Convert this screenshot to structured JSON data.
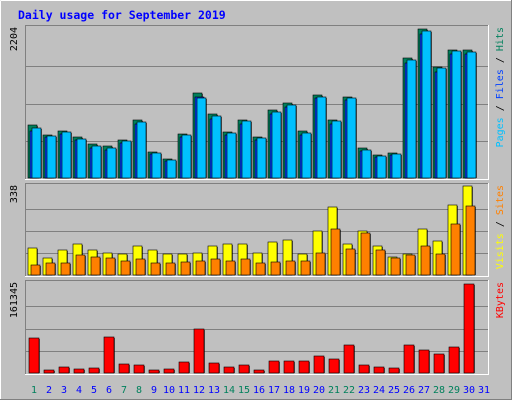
{
  "title": "Daily usage for September 2019",
  "colors": {
    "background": "#c0c0c0",
    "border_dark": "#808080",
    "title": "#0000ff",
    "hits": "#00805c",
    "files": "#0040ff",
    "pages": "#00c0ff",
    "visits": "#ffff00",
    "sites": "#ff8000",
    "kbytes": "#ff0000",
    "weekend_day": "#00805c",
    "weekday": "#0000ff",
    "gridline": "#808080"
  },
  "chart_data": [
    {
      "type": "bar",
      "panel": "top",
      "categories": [
        "1",
        "2",
        "3",
        "4",
        "5",
        "6",
        "7",
        "8",
        "9",
        "10",
        "11",
        "12",
        "13",
        "14",
        "15",
        "16",
        "17",
        "18",
        "19",
        "20",
        "21",
        "22",
        "23",
        "24",
        "25",
        "26",
        "27",
        "28",
        "29",
        "30",
        "31"
      ],
      "max_label": "2204",
      "ylim": [
        0,
        2204
      ],
      "legend": [
        "Pages",
        "Files",
        "Hits"
      ],
      "series": [
        {
          "name": "Hits",
          "color": "#00805c",
          "values": [
            780,
            640,
            700,
            600,
            500,
            470,
            560,
            860,
            380,
            280,
            650,
            1250,
            950,
            680,
            860,
            610,
            1000,
            1110,
            690,
            1230,
            860,
            1200,
            440,
            340,
            370,
            1770,
            2200,
            1640,
            1900,
            1900,
            0
          ]
        },
        {
          "name": "Files",
          "color": "#0040ff",
          "values": [
            700,
            600,
            650,
            560,
            450,
            420,
            520,
            800,
            350,
            250,
            600,
            1200,
            880,
            630,
            800,
            560,
            940,
            1050,
            640,
            1180,
            800,
            1150,
            400,
            310,
            340,
            1700,
            2130,
            1570,
            1840,
            1840,
            0
          ]
        },
        {
          "name": "Pages",
          "color": "#00c0ff",
          "values": [
            740,
            620,
            680,
            580,
            470,
            450,
            540,
            830,
            370,
            270,
            630,
            1190,
            910,
            660,
            840,
            590,
            970,
            1080,
            670,
            1200,
            840,
            1180,
            420,
            320,
            360,
            1740,
            2170,
            1620,
            1880,
            1870,
            0
          ]
        }
      ]
    },
    {
      "type": "bar",
      "panel": "middle",
      "categories": [
        "1",
        "2",
        "3",
        "4",
        "5",
        "6",
        "7",
        "8",
        "9",
        "10",
        "11",
        "12",
        "13",
        "14",
        "15",
        "16",
        "17",
        "18",
        "19",
        "20",
        "21",
        "22",
        "23",
        "24",
        "25",
        "26",
        "27",
        "28",
        "29",
        "30",
        "31"
      ],
      "max_label": "338",
      "ylim": [
        0,
        338
      ],
      "legend": [
        "Visits",
        "Sites"
      ],
      "series": [
        {
          "name": "Visits",
          "color": "#ffff00",
          "values": [
            105,
            65,
            95,
            120,
            95,
            85,
            80,
            110,
            95,
            80,
            80,
            85,
            110,
            120,
            120,
            85,
            125,
            135,
            80,
            170,
            260,
            120,
            170,
            110,
            70,
            80,
            175,
            130,
            270,
            340,
            0
          ]
        },
        {
          "name": "Sites",
          "color": "#ff8000",
          "values": [
            40,
            45,
            45,
            75,
            70,
            65,
            55,
            60,
            45,
            45,
            50,
            55,
            60,
            55,
            60,
            45,
            50,
            55,
            55,
            85,
            175,
            100,
            160,
            95,
            65,
            75,
            110,
            80,
            195,
            265,
            0
          ]
        }
      ]
    },
    {
      "type": "bar",
      "panel": "bottom",
      "categories": [
        "1",
        "2",
        "3",
        "4",
        "5",
        "6",
        "7",
        "8",
        "9",
        "10",
        "11",
        "12",
        "13",
        "14",
        "15",
        "16",
        "17",
        "18",
        "19",
        "20",
        "21",
        "22",
        "23",
        "24",
        "25",
        "26",
        "27",
        "28",
        "29",
        "30",
        "31"
      ],
      "max_label": "161345",
      "ylim": [
        0,
        161345
      ],
      "legend": [
        "KBytes"
      ],
      "series": [
        {
          "name": "KBytes",
          "color": "#ff0000",
          "values": [
            64000,
            6000,
            10000,
            8000,
            9000,
            66000,
            17000,
            14000,
            6000,
            8000,
            20000,
            79000,
            18000,
            10000,
            14000,
            6000,
            22000,
            22000,
            22000,
            30000,
            25000,
            50000,
            15000,
            10000,
            9000,
            50000,
            42000,
            34000,
            47000,
            161345,
            0
          ]
        }
      ]
    }
  ],
  "x_labels": [
    {
      "text": "1",
      "weekend": true
    },
    {
      "text": "2",
      "weekend": false
    },
    {
      "text": "3",
      "weekend": false
    },
    {
      "text": "4",
      "weekend": false
    },
    {
      "text": "5",
      "weekend": false
    },
    {
      "text": "6",
      "weekend": false
    },
    {
      "text": "7",
      "weekend": true
    },
    {
      "text": "8",
      "weekend": true
    },
    {
      "text": "9",
      "weekend": false
    },
    {
      "text": "10",
      "weekend": false
    },
    {
      "text": "11",
      "weekend": false
    },
    {
      "text": "12",
      "weekend": false
    },
    {
      "text": "13",
      "weekend": false
    },
    {
      "text": "14",
      "weekend": true
    },
    {
      "text": "15",
      "weekend": true
    },
    {
      "text": "16",
      "weekend": false
    },
    {
      "text": "17",
      "weekend": false
    },
    {
      "text": "18",
      "weekend": false
    },
    {
      "text": "19",
      "weekend": false
    },
    {
      "text": "20",
      "weekend": false
    },
    {
      "text": "21",
      "weekend": true
    },
    {
      "text": "22",
      "weekend": true
    },
    {
      "text": "23",
      "weekend": false
    },
    {
      "text": "24",
      "weekend": false
    },
    {
      "text": "25",
      "weekend": false
    },
    {
      "text": "26",
      "weekend": false
    },
    {
      "text": "27",
      "weekend": false
    },
    {
      "text": "28",
      "weekend": true
    },
    {
      "text": "29",
      "weekend": true
    },
    {
      "text": "30",
      "weekend": false
    },
    {
      "text": "31",
      "weekend": false
    }
  ],
  "legend_separator": " / "
}
